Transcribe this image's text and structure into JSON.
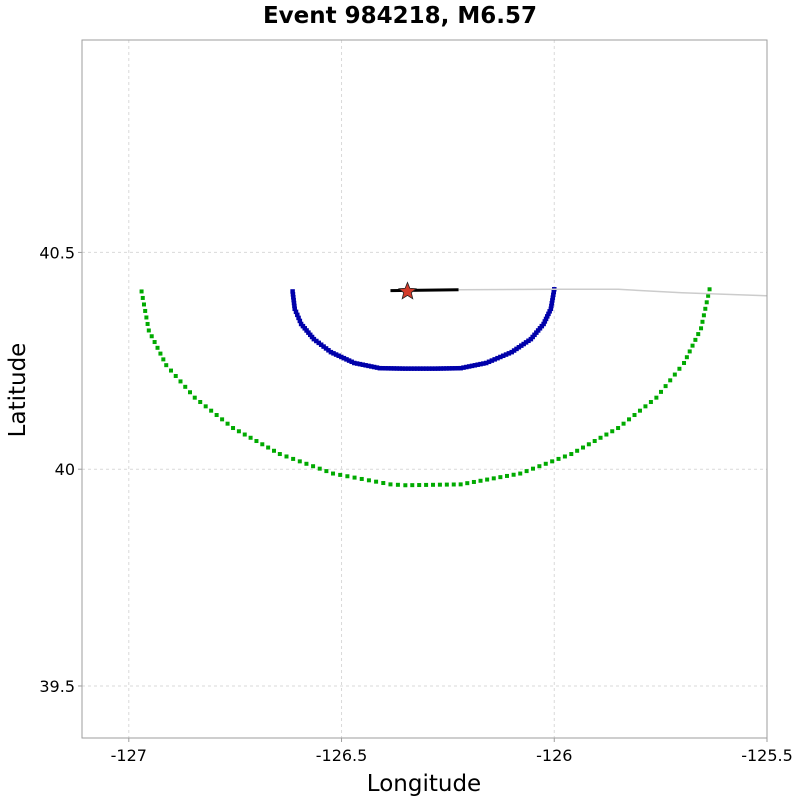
{
  "chart_data": {
    "type": "scatter",
    "title": "Event 984218, M6.57",
    "xlabel": "Longitude",
    "ylabel": "Latitude",
    "xlim": [
      -127.11,
      -125.5
    ],
    "ylim": [
      39.38,
      40.99
    ],
    "grid": true,
    "legend": "none",
    "x_ticks": [
      -127,
      -126.5,
      -126,
      -125.5
    ],
    "x_tick_labels": [
      "-127",
      "-126.5",
      "-126",
      "-125.5"
    ],
    "y_ticks": [
      39.5,
      40,
      40.5
    ],
    "y_tick_labels": [
      "39.5",
      "40",
      "40.5"
    ],
    "series": [
      {
        "style": "dotted-curve",
        "color": "#00aa00",
        "x": [
          -126.97,
          -126.953,
          -126.912,
          -126.845,
          -126.755,
          -126.645,
          -126.52,
          -126.385,
          -126.35,
          -126.22,
          -126.08,
          -125.96,
          -125.85,
          -125.76,
          -125.695,
          -125.655,
          -125.635
        ],
        "y": [
          40.41,
          40.32,
          40.24,
          40.165,
          40.095,
          40.035,
          39.99,
          39.965,
          39.963,
          39.965,
          39.99,
          40.035,
          40.095,
          40.165,
          40.245,
          40.325,
          40.415
        ]
      },
      {
        "style": "dotted-curve",
        "color": "#0000aa",
        "x": [
          -126.615,
          -126.61,
          -126.595,
          -126.565,
          -126.525,
          -126.47,
          -126.41,
          -126.35,
          -126.28,
          -126.22,
          -126.16,
          -126.1,
          -126.055,
          -126.025,
          -126.008,
          -126.0
        ],
        "y": [
          40.41,
          40.37,
          40.335,
          40.3,
          40.27,
          40.245,
          40.233,
          40.232,
          40.232,
          40.233,
          40.245,
          40.27,
          40.3,
          40.335,
          40.37,
          40.415
        ]
      },
      {
        "style": "solid-line",
        "color": "#000000",
        "x": [
          -126.385,
          -126.225
        ],
        "y": [
          40.412,
          40.414
        ]
      },
      {
        "style": "thin-line",
        "color": "#cccccc",
        "x": [
          -126.225,
          -126.0,
          -125.85,
          -125.7,
          -125.5
        ],
        "y": [
          40.414,
          40.415,
          40.415,
          40.407,
          40.4
        ]
      },
      {
        "style": "star-marker",
        "color": "#d23b2a",
        "x": [
          -126.345
        ],
        "y": [
          40.41
        ]
      }
    ]
  }
}
